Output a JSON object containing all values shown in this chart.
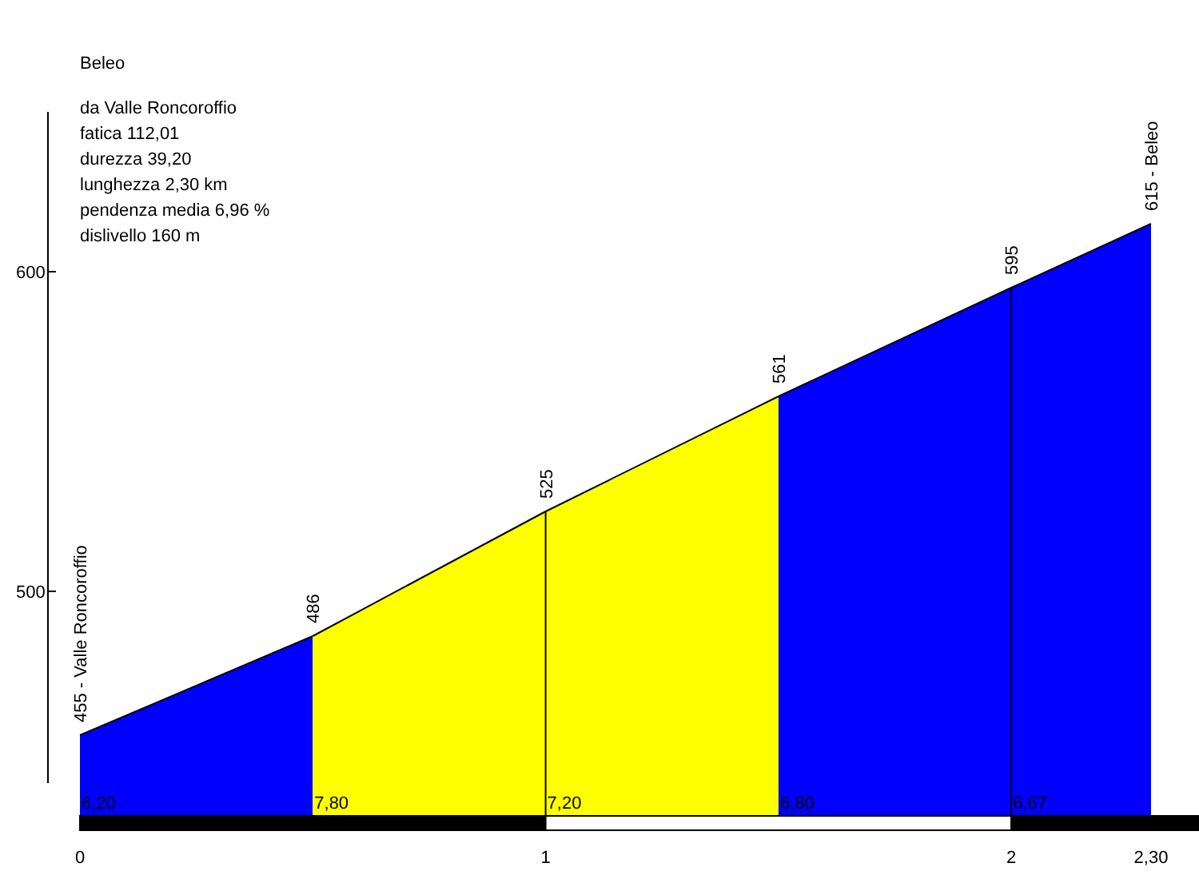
{
  "chart_data": {
    "type": "area",
    "title": "Beleo",
    "subtitle": "da Valle Roncoroffio",
    "annotations": [
      "fatica 112,01",
      "durezza 39,20",
      "lunghezza 2,30 km",
      "pendenza media 6,96 %",
      "dislivello 160 m",
      "6,20",
      "7,80",
      "7,20",
      "6,80",
      "6,67"
    ],
    "series": [
      {
        "x": [
          0,
          0.5
        ],
        "values": [
          455,
          486
        ],
        "color": "#0000ff",
        "value_labels": [
          "455 - Valle Roncoroffio",
          null
        ]
      },
      {
        "x": [
          0.5,
          1
        ],
        "values": [
          486,
          525
        ],
        "color": "#ffff00",
        "value_labels": [
          "486",
          null
        ]
      },
      {
        "x": [
          1,
          1.5
        ],
        "values": [
          525,
          561
        ],
        "color": "#ffff00",
        "value_labels": [
          "525",
          null
        ]
      },
      {
        "x": [
          1.5,
          2
        ],
        "values": [
          561,
          595
        ],
        "color": "#0000ff",
        "value_labels": [
          "561",
          null
        ]
      },
      {
        "x": [
          2,
          2.3
        ],
        "values": [
          595,
          615
        ],
        "color": "#0000ff",
        "value_labels": [
          "595",
          "615 - Beleo"
        ]
      }
    ],
    "ref_lines": [
      {
        "axis": "x",
        "value": 1
      },
      {
        "axis": "x",
        "value": 2
      }
    ],
    "xlim": [
      0,
      2.3
    ],
    "xticks": [
      0,
      1,
      2,
      {
        "value": 2.3,
        "label": "2,30"
      }
    ],
    "ylim": [
      430,
      650
    ],
    "yticks": [
      500,
      600
    ]
  }
}
